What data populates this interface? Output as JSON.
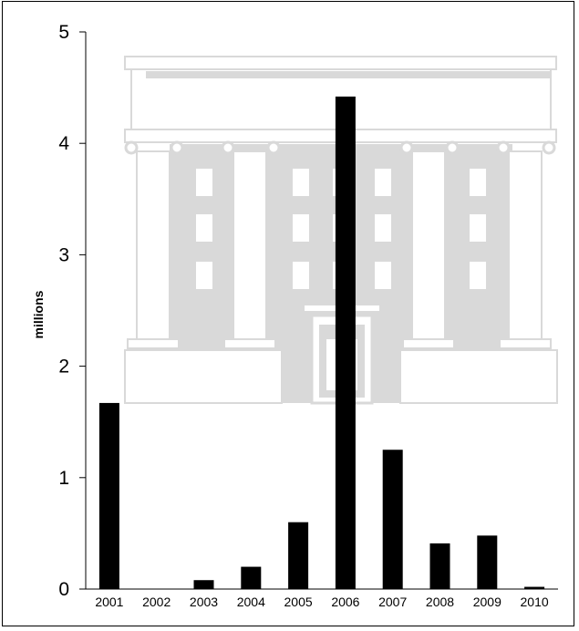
{
  "chart_data": {
    "type": "bar",
    "categories": [
      "2001",
      "2002",
      "2003",
      "2004",
      "2005",
      "2006",
      "2007",
      "2008",
      "2009",
      "2010"
    ],
    "values": [
      1.67,
      0.0,
      0.08,
      0.2,
      0.6,
      4.42,
      1.25,
      0.41,
      0.48,
      0.02
    ],
    "ylabel": "millions",
    "ylim": [
      0,
      5
    ],
    "yticks": [
      "0",
      "1",
      "2",
      "3",
      "4",
      "5"
    ],
    "grid": false,
    "bar_color": "#000000",
    "background_image": "building-illustration"
  }
}
